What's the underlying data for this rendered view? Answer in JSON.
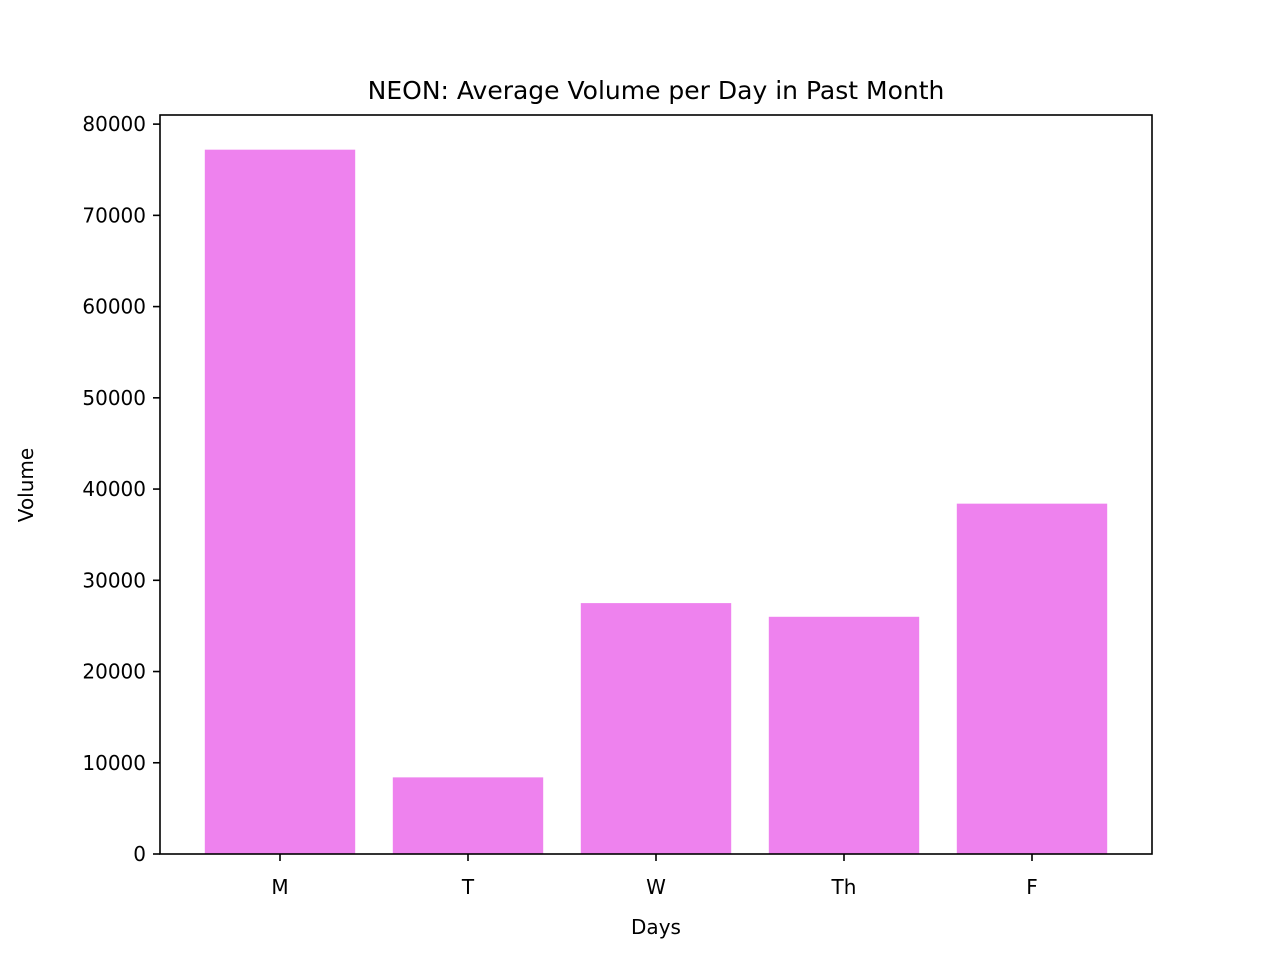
{
  "chart_data": {
    "type": "bar",
    "title": "NEON: Average Volume per Day in Past Month",
    "xlabel": "Days",
    "ylabel": "Volume",
    "categories": [
      "M",
      "T",
      "W",
      "Th",
      "F"
    ],
    "values": [
      77200,
      8400,
      27500,
      26000,
      38400
    ],
    "ylim": [
      0,
      81000
    ],
    "yticks": [
      0,
      10000,
      20000,
      30000,
      40000,
      50000,
      60000,
      70000,
      80000
    ],
    "ytick_labels": [
      "0",
      "10000",
      "20000",
      "30000",
      "40000",
      "50000",
      "60000",
      "70000",
      "80000"
    ],
    "bar_color": "#ee82ee",
    "grid": false,
    "legend": "none"
  }
}
